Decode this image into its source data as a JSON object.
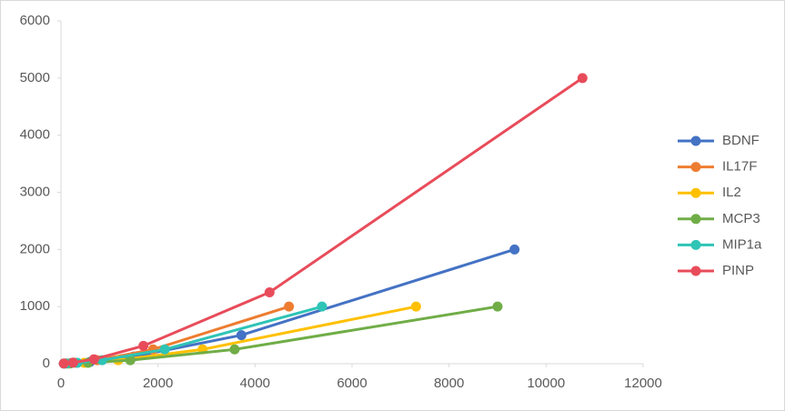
{
  "chart_data": {
    "type": "scatter",
    "lines": true,
    "xlim": [
      0,
      12000
    ],
    "xticks": [
      0,
      2000,
      4000,
      6000,
      8000,
      10000,
      12000
    ],
    "ylim": [
      0,
      6000
    ],
    "yticks": [
      0,
      1000,
      2000,
      3000,
      4000,
      5000,
      6000
    ],
    "grid": false,
    "legend": "right",
    "series": [
      {
        "name": "BDNF",
        "color": "#4472c4",
        "x": [
          9350,
          3720,
          1500,
          600,
          200,
          60
        ],
        "values": [
          2000,
          500,
          125,
          31.25,
          7.8,
          2
        ]
      },
      {
        "name": "IL17F",
        "color": "#ed7d31",
        "x": [
          4700,
          1900,
          750,
          300,
          100
        ],
        "values": [
          1000,
          250,
          62.5,
          15.6,
          3.9
        ]
      },
      {
        "name": "IL2",
        "color": "#ffc000",
        "x": [
          7320,
          2920,
          1180,
          480,
          150
        ],
        "values": [
          1000,
          250,
          62.5,
          15.6,
          3.9
        ]
      },
      {
        "name": "MCP3",
        "color": "#70ad47",
        "x": [
          9000,
          3580,
          1430,
          560,
          180
        ],
        "values": [
          1000,
          250,
          62.5,
          15.6,
          3.9
        ]
      },
      {
        "name": "MIP1a",
        "color": "#2ec4b6",
        "x": [
          5380,
          2140,
          850,
          340,
          110
        ],
        "values": [
          1000,
          250,
          62.5,
          15.6,
          3.9
        ]
      },
      {
        "name": "PINP",
        "color": "#e84c5a",
        "x": [
          10750,
          4300,
          1700,
          680,
          250,
          60
        ],
        "values": [
          5000,
          1250,
          312.5,
          78.1,
          19.5,
          4.9
        ]
      }
    ]
  }
}
